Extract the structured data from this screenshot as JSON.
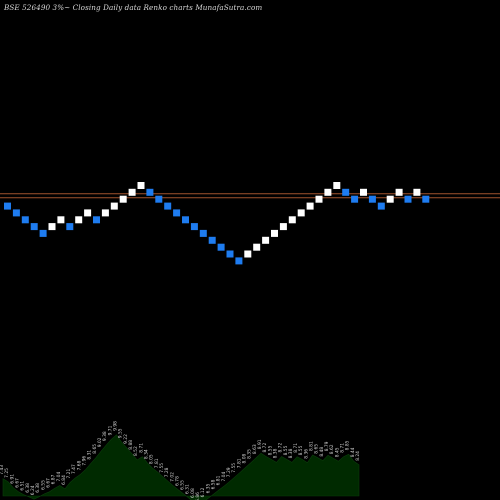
{
  "chart_data": {
    "type": "renko",
    "title": "BSE 526490  3%~  Closing Daily data  Renko  charts MunafaSutra.com",
    "colors": {
      "background": "#000000",
      "up_brick": "#ffffff",
      "down_brick": "#1e7cf0",
      "reference_line": "#a0522d",
      "volume_fill": "#002a00",
      "volume_label": "#cfcfcf"
    },
    "bricks": [
      {
        "dir": "down",
        "level": 8
      },
      {
        "dir": "down",
        "level": 7
      },
      {
        "dir": "down",
        "level": 6
      },
      {
        "dir": "down",
        "level": 5
      },
      {
        "dir": "down",
        "level": 4
      },
      {
        "dir": "up",
        "level": 5
      },
      {
        "dir": "up",
        "level": 6
      },
      {
        "dir": "down",
        "level": 5
      },
      {
        "dir": "up",
        "level": 6
      },
      {
        "dir": "up",
        "level": 7
      },
      {
        "dir": "down",
        "level": 6
      },
      {
        "dir": "up",
        "level": 7
      },
      {
        "dir": "up",
        "level": 8
      },
      {
        "dir": "up",
        "level": 9
      },
      {
        "dir": "up",
        "level": 10
      },
      {
        "dir": "up",
        "level": 11
      },
      {
        "dir": "down",
        "level": 10
      },
      {
        "dir": "down",
        "level": 9
      },
      {
        "dir": "down",
        "level": 8
      },
      {
        "dir": "down",
        "level": 7
      },
      {
        "dir": "down",
        "level": 6
      },
      {
        "dir": "down",
        "level": 5
      },
      {
        "dir": "down",
        "level": 4
      },
      {
        "dir": "down",
        "level": 3
      },
      {
        "dir": "down",
        "level": 2
      },
      {
        "dir": "down",
        "level": 1
      },
      {
        "dir": "down",
        "level": 0
      },
      {
        "dir": "up",
        "level": 1
      },
      {
        "dir": "up",
        "level": 2
      },
      {
        "dir": "up",
        "level": 3
      },
      {
        "dir": "up",
        "level": 4
      },
      {
        "dir": "up",
        "level": 5
      },
      {
        "dir": "up",
        "level": 6
      },
      {
        "dir": "up",
        "level": 7
      },
      {
        "dir": "up",
        "level": 8
      },
      {
        "dir": "up",
        "level": 9
      },
      {
        "dir": "up",
        "level": 10
      },
      {
        "dir": "up",
        "level": 11
      },
      {
        "dir": "down",
        "level": 10
      },
      {
        "dir": "down",
        "level": 9
      },
      {
        "dir": "up",
        "level": 10
      },
      {
        "dir": "down",
        "level": 9
      },
      {
        "dir": "down",
        "level": 8
      },
      {
        "dir": "up",
        "level": 9
      },
      {
        "dir": "up",
        "level": 10
      },
      {
        "dir": "down",
        "level": 9
      },
      {
        "dir": "up",
        "level": 10
      },
      {
        "dir": "down",
        "level": 9
      }
    ],
    "reference_lines": [
      9.8,
      9.2
    ],
    "volume_labels": [
      "7.43",
      "7.25",
      "6.91",
      "6.67",
      "6.51",
      "6.38",
      "6.24",
      "6.38",
      "6.55",
      "6.67",
      "6.87",
      "7.04",
      "6.84",
      "7.21",
      "7.47",
      "7.68",
      "7.96",
      "8.31",
      "8.65",
      "9.02",
      "9.38",
      "9.71",
      "9.98",
      "9.55",
      "9.22",
      "8.88",
      "8.52",
      "8.71",
      "8.34",
      "8.05",
      "7.81",
      "7.55",
      "7.28",
      "7.02",
      "6.78",
      "6.55",
      "6.31",
      "6.08",
      "5.86",
      "6.12",
      "6.35",
      "6.58",
      "6.81",
      "7.04",
      "7.29",
      "7.55",
      "7.81",
      "8.08",
      "8.35",
      "8.63",
      "8.91",
      "8.72",
      "8.55",
      "8.38",
      "8.72",
      "8.55",
      "8.38",
      "8.71",
      "8.55",
      "8.36",
      "8.81",
      "8.65",
      "8.48",
      "8.79",
      "8.62",
      "8.45",
      "8.71",
      "8.85",
      "8.44",
      "8.24"
    ]
  }
}
